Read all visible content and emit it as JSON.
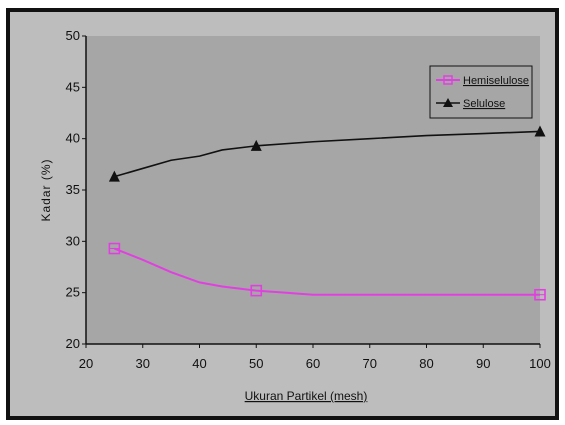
{
  "chart_data": {
    "type": "line",
    "xlabel": "Ukuran Partikel (mesh)",
    "ylabel": "Kadar (%)",
    "xlim": [
      20,
      100
    ],
    "ylim": [
      20,
      50
    ],
    "x_ticks": [
      20,
      30,
      40,
      50,
      60,
      70,
      80,
      90,
      100
    ],
    "y_ticks": [
      20,
      25,
      30,
      35,
      40,
      45,
      50
    ],
    "grid": false,
    "legend_position": "top-right",
    "series": [
      {
        "name": "Hemiselulose",
        "color": "#e040e0",
        "marker": "square",
        "points": [
          [
            25,
            29.3
          ],
          [
            50,
            25.2
          ],
          [
            100,
            24.8
          ]
        ],
        "curve": [
          [
            25,
            29.3
          ],
          [
            30,
            28.2
          ],
          [
            35,
            27.0
          ],
          [
            40,
            26.0
          ],
          [
            44,
            25.6
          ],
          [
            50,
            25.2
          ],
          [
            55,
            25.0
          ],
          [
            60,
            24.8
          ],
          [
            70,
            24.8
          ],
          [
            80,
            24.8
          ],
          [
            90,
            24.8
          ],
          [
            100,
            24.8
          ]
        ]
      },
      {
        "name": "Selulose",
        "color": "#111111",
        "marker": "triangle",
        "points": [
          [
            25,
            36.3
          ],
          [
            50,
            39.3
          ],
          [
            100,
            40.7
          ]
        ],
        "curve": [
          [
            25,
            36.3
          ],
          [
            30,
            37.1
          ],
          [
            35,
            37.9
          ],
          [
            40,
            38.3
          ],
          [
            44,
            38.9
          ],
          [
            50,
            39.3
          ],
          [
            60,
            39.7
          ],
          [
            70,
            40.0
          ],
          [
            80,
            40.3
          ],
          [
            90,
            40.5
          ],
          [
            100,
            40.7
          ]
        ]
      }
    ]
  }
}
